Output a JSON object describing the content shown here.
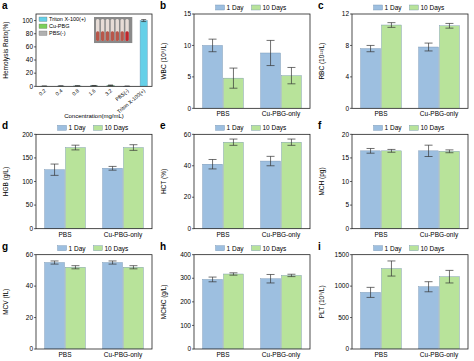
{
  "chart_data": [
    {
      "type": "bar",
      "title": "a",
      "x_label": "Concentration(mg/mL)",
      "y_label": "Hemolysis Ratio(%)",
      "categories": [
        "0.2",
        "0.4",
        "0.8",
        "1.6",
        "3.2",
        "PBS(-)",
        "Triton X-100(+)"
      ],
      "series": [
        {
          "name": "Triton X-100(+)",
          "color": "#66d0e8",
          "values": [
            null,
            null,
            null,
            null,
            null,
            null,
            100
          ],
          "errors": [
            null,
            null,
            null,
            null,
            null,
            null,
            1.5
          ]
        },
        {
          "name": "Cu-PBG",
          "color": "#7ccf5a",
          "values": [
            0.3,
            0.5,
            0.7,
            1.0,
            1.6,
            null,
            null
          ],
          "errors": [
            0.1,
            0.2,
            0.2,
            0.3,
            0.4,
            null,
            null
          ]
        },
        {
          "name": "PBS(-)",
          "color": "#b0b0b0",
          "values": [
            null,
            null,
            null,
            null,
            null,
            0.2,
            null
          ],
          "errors": [
            null,
            null,
            null,
            null,
            null,
            0.1,
            null
          ]
        }
      ],
      "ylim": [
        0,
        110
      ],
      "yticks": [
        0,
        20,
        40,
        60,
        80,
        100
      ],
      "legend": "top-left"
    },
    {
      "type": "bar",
      "title": "b",
      "y_label": "WBC (10⁹/L)",
      "categories": [
        "PBS",
        "Cu-PBG-only"
      ],
      "series": [
        {
          "name": "1 Day",
          "color": "#9dbfe0",
          "values": [
            10.0,
            8.8
          ],
          "errors": [
            1.0,
            2.0
          ]
        },
        {
          "name": "10 Days",
          "color": "#b8e39a",
          "values": [
            4.8,
            5.2
          ],
          "errors": [
            1.6,
            1.3
          ]
        }
      ],
      "ylim": [
        0,
        15
      ],
      "yticks": [
        0,
        5,
        10,
        15
      ],
      "legend": "top"
    },
    {
      "type": "bar",
      "title": "c",
      "y_label": "RBC (10¹²/L)",
      "categories": [
        "PBS",
        "Cu-PBG-only"
      ],
      "series": [
        {
          "name": "1 Day",
          "color": "#9dbfe0",
          "values": [
            7.6,
            7.8
          ],
          "errors": [
            0.4,
            0.5
          ]
        },
        {
          "name": "10 Days",
          "color": "#b8e39a",
          "values": [
            10.6,
            10.5
          ],
          "errors": [
            0.3,
            0.3
          ]
        }
      ],
      "ylim": [
        0,
        12
      ],
      "yticks": [
        0,
        4,
        8,
        12
      ],
      "legend": "top"
    },
    {
      "type": "bar",
      "title": "d",
      "y_label": "HGB (g/L)",
      "categories": [
        "PBS",
        "Cu-PBG-only"
      ],
      "series": [
        {
          "name": "1 Day",
          "color": "#9dbfe0",
          "values": [
            125,
            128
          ],
          "errors": [
            12,
            4
          ]
        },
        {
          "name": "10 Days",
          "color": "#b8e39a",
          "values": [
            172,
            172
          ],
          "errors": [
            5,
            6
          ]
        }
      ],
      "ylim": [
        0,
        200
      ],
      "yticks": [
        0,
        50,
        100,
        150,
        200
      ],
      "legend": "top"
    },
    {
      "type": "bar",
      "title": "e",
      "y_label": "HCT (%)",
      "categories": [
        "PBS",
        "Cu-PBG-only"
      ],
      "series": [
        {
          "name": "1 Day",
          "color": "#9dbfe0",
          "values": [
            41,
            43
          ],
          "errors": [
            3,
            3
          ]
        },
        {
          "name": "10 Days",
          "color": "#b8e39a",
          "values": [
            55,
            55
          ],
          "errors": [
            2,
            2
          ]
        }
      ],
      "ylim": [
        0,
        60
      ],
      "yticks": [
        0,
        20,
        40,
        60
      ],
      "legend": "top"
    },
    {
      "type": "bar",
      "title": "f",
      "y_label": "MCH (pg)",
      "categories": [
        "PBS",
        "Cu-PBG-only"
      ],
      "series": [
        {
          "name": "1 Day",
          "color": "#9dbfe0",
          "values": [
            16.5,
            16.5
          ],
          "errors": [
            0.5,
            1.2
          ]
        },
        {
          "name": "10 Days",
          "color": "#b8e39a",
          "values": [
            16.5,
            16.4
          ],
          "errors": [
            0.3,
            0.3
          ]
        }
      ],
      "ylim": [
        0,
        20
      ],
      "yticks": [
        0,
        5,
        10,
        15,
        20
      ],
      "legend": "top"
    },
    {
      "type": "bar",
      "title": "g",
      "y_label": "MCV (fL)",
      "categories": [
        "PBS",
        "Cu-PBG-only"
      ],
      "series": [
        {
          "name": "1 Day",
          "color": "#9dbfe0",
          "values": [
            55,
            55
          ],
          "errors": [
            1,
            1
          ]
        },
        {
          "name": "10 Days",
          "color": "#b8e39a",
          "values": [
            52,
            52
          ],
          "errors": [
            1,
            1
          ]
        }
      ],
      "ylim": [
        0,
        60
      ],
      "yticks": [
        0,
        20,
        40,
        60
      ],
      "legend": "top"
    },
    {
      "type": "bar",
      "title": "h",
      "y_label": "MCHC (g/L)",
      "categories": [
        "PBS",
        "Cu-PBG-only"
      ],
      "series": [
        {
          "name": "1 Day",
          "color": "#9dbfe0",
          "values": [
            295,
            298
          ],
          "errors": [
            10,
            18
          ]
        },
        {
          "name": "10 Days",
          "color": "#b8e39a",
          "values": [
            318,
            312
          ],
          "errors": [
            5,
            5
          ]
        }
      ],
      "ylim": [
        0,
        400
      ],
      "yticks": [
        0,
        100,
        200,
        300,
        400
      ],
      "legend": "top"
    },
    {
      "type": "bar",
      "title": "i",
      "y_label": "PLT (10⁹/L)",
      "categories": [
        "PBS",
        "Cu-PBG-only"
      ],
      "series": [
        {
          "name": "1 Day",
          "color": "#9dbfe0",
          "values": [
            900,
            990
          ],
          "errors": [
            80,
            80
          ]
        },
        {
          "name": "10 Days",
          "color": "#b8e39a",
          "values": [
            1280,
            1150
          ],
          "errors": [
            120,
            100
          ]
        }
      ],
      "ylim": [
        0,
        1500
      ],
      "yticks": [
        0,
        500,
        1000,
        1500
      ],
      "legend": "top"
    }
  ]
}
